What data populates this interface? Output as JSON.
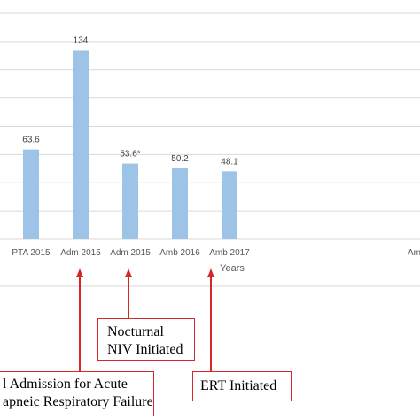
{
  "chart_data": {
    "type": "bar",
    "categories": [
      "PTA 2015",
      "Adm 2015",
      "Adm 2015",
      "Amb 2016",
      "Amb 2017"
    ],
    "values": [
      63.6,
      134,
      53.6,
      50.2,
      48.1
    ],
    "value_labels": [
      "63.6",
      "134",
      "53.6*",
      "50.2",
      "48.1"
    ],
    "partial_category": "Am",
    "xlabel": "Years",
    "ylim": [
      0,
      160
    ],
    "grid": true,
    "bar_color": "#9dc3e6"
  },
  "annotations": [
    {
      "lines": [
        "l Admission for Acute",
        "apneic Respiratory Failure"
      ],
      "target_category": 1
    },
    {
      "lines": [
        "Nocturnal",
        "NIV Initiated"
      ],
      "target_category": 2
    },
    {
      "lines": [
        "ERT Initiated"
      ],
      "target_category": 4
    }
  ],
  "colors": {
    "annotation_border": "#d62828",
    "arrow": "#d62828",
    "grid": "#d9d9d9",
    "axis_text": "#595959"
  }
}
